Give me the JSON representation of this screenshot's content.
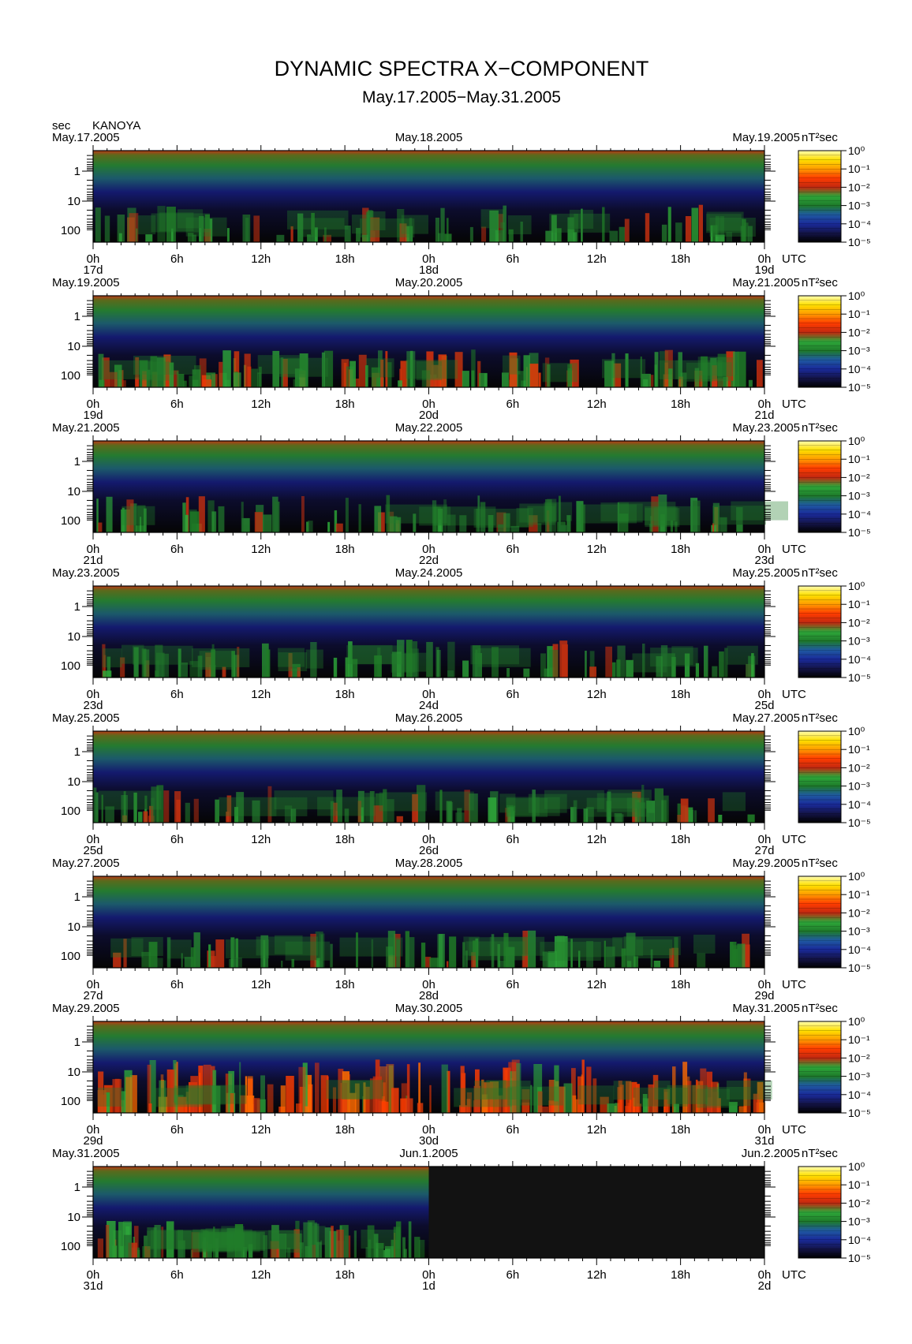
{
  "title": "DYNAMIC SPECTRA X−COMPONENT",
  "subtitle": "May.17.2005−May.31.2005",
  "y_unit": "sec",
  "station": "KANOYA",
  "colorbar_unit": "nT²sec",
  "chart_data": {
    "type": "heatmap",
    "description_free": true,
    "x_unit": "UTC",
    "x_ticks": [
      "0h",
      "6h",
      "12h",
      "18h",
      "0h",
      "6h",
      "12h",
      "18h",
      "0h"
    ],
    "y_ticks": [
      "1",
      "10",
      "100"
    ],
    "y_scale": "log",
    "y_axis_inverted": true,
    "colorbar_ticks": [
      "10⁰",
      "10⁻¹",
      "10⁻²",
      "10⁻³",
      "10⁻⁴",
      "10⁻⁵"
    ],
    "colorbar_range": [
      1e-05,
      1
    ],
    "colorscale": [
      "#000000",
      "#101040",
      "#1a2a9a",
      "#1f5aa0",
      "#1e7a2a",
      "#2ea83a",
      "#cc2a10",
      "#ff3c00",
      "#ff9a00",
      "#ffe000",
      "#fffcb0"
    ],
    "panels": [
      {
        "date_left": "May.17.2005",
        "date_mid": "May.18.2005",
        "date_right": "May.19.2005",
        "day_left": "17d",
        "day_mid": "18d",
        "day_right": "19d",
        "activity": "low",
        "data_coverage": 1.0
      },
      {
        "date_left": "May.19.2005",
        "date_mid": "May.20.2005",
        "date_right": "May.21.2005",
        "day_left": "19d",
        "day_mid": "20d",
        "day_right": "21d",
        "activity": "moderate",
        "data_coverage": 1.0
      },
      {
        "date_left": "May.21.2005",
        "date_mid": "May.22.2005",
        "date_right": "May.23.2005",
        "day_left": "21d",
        "day_mid": "22d",
        "day_right": "23d",
        "activity": "low",
        "data_coverage": 1.0
      },
      {
        "date_left": "May.23.2005",
        "date_mid": "May.24.2005",
        "date_right": "May.25.2005",
        "day_left": "23d",
        "day_mid": "24d",
        "day_right": "25d",
        "activity": "low",
        "data_coverage": 1.0
      },
      {
        "date_left": "May.25.2005",
        "date_mid": "May.26.2005",
        "date_right": "May.27.2005",
        "day_left": "25d",
        "day_mid": "26d",
        "day_right": "27d",
        "activity": "low",
        "data_coverage": 1.0
      },
      {
        "date_left": "May.27.2005",
        "date_mid": "May.28.2005",
        "date_right": "May.29.2005",
        "day_left": "27d",
        "day_mid": "28d",
        "day_right": "29d",
        "activity": "low",
        "data_coverage": 1.0
      },
      {
        "date_left": "May.29.2005",
        "date_mid": "May.30.2005",
        "date_right": "May.31.2005",
        "day_left": "29d",
        "day_mid": "30d",
        "day_right": "31d",
        "activity": "high",
        "data_coverage": 1.0
      },
      {
        "date_left": "May.31.2005",
        "date_mid": "Jun.1.2005",
        "date_right": "Jun.2.2005",
        "day_left": "31d",
        "day_mid": "1d",
        "day_right": "2d",
        "activity": "low",
        "data_coverage": 0.5
      }
    ]
  }
}
